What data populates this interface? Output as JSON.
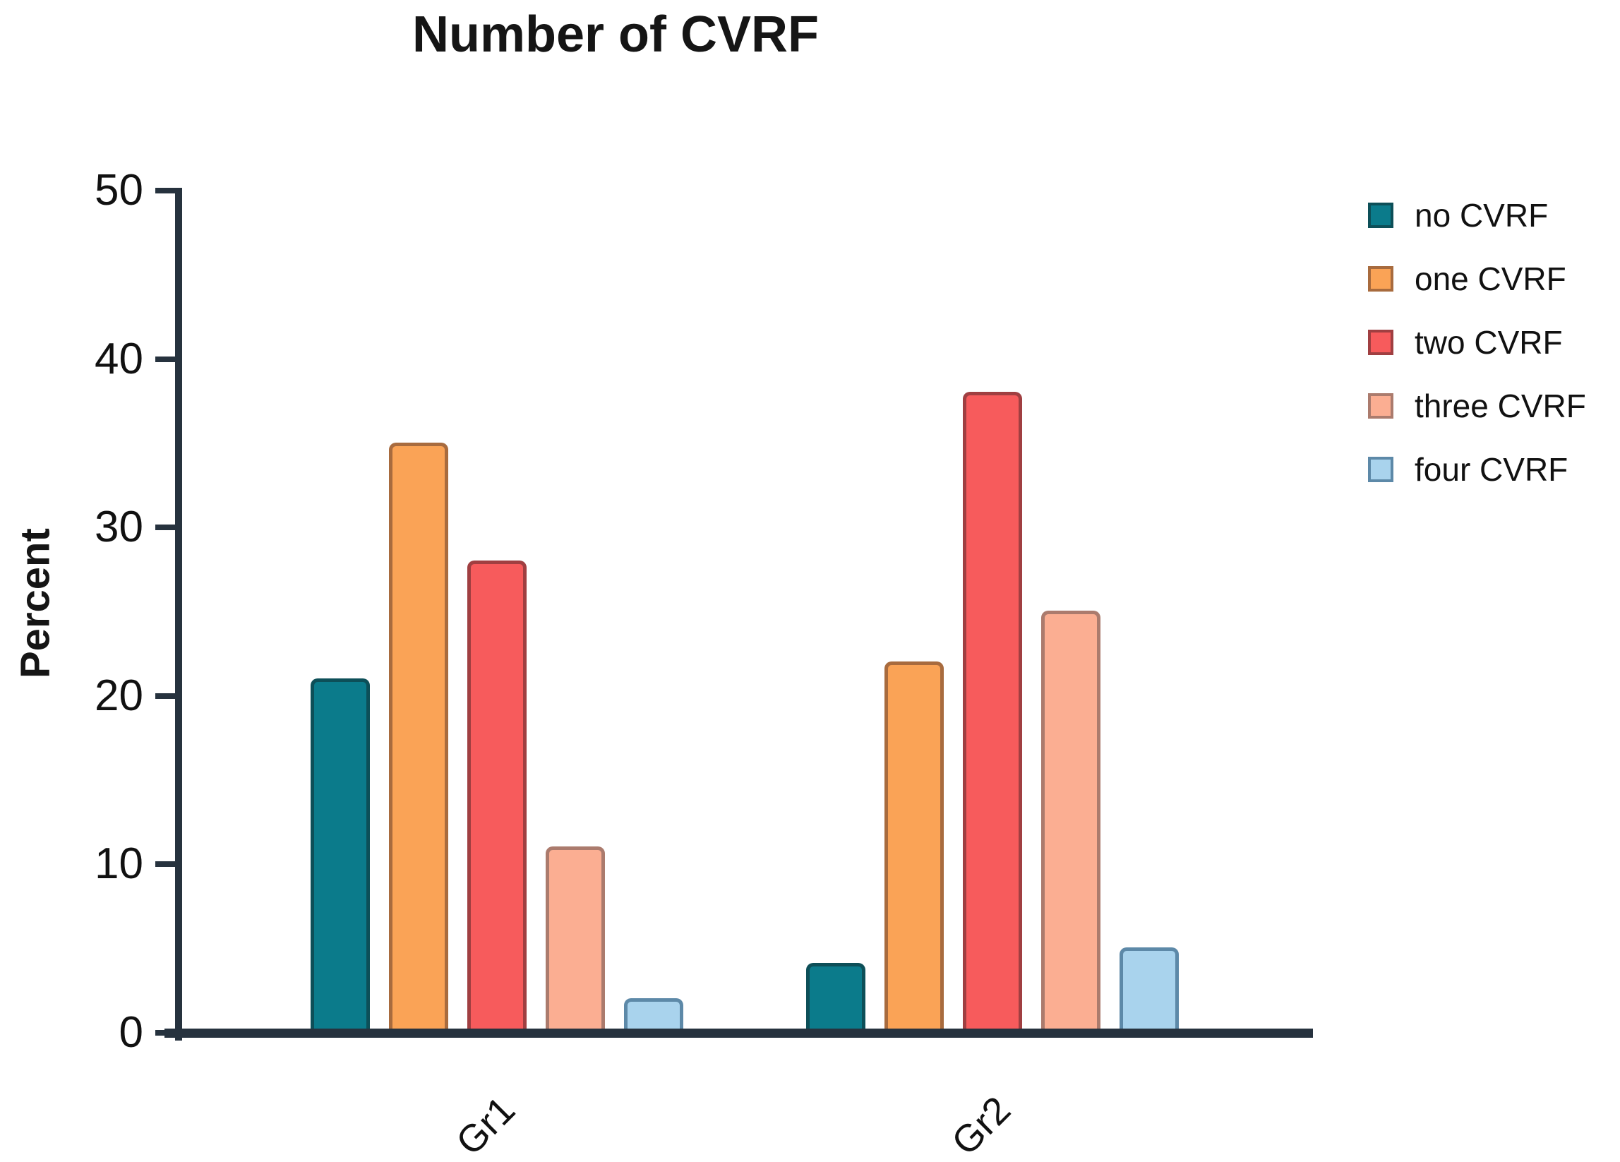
{
  "chart_data": {
    "type": "bar",
    "title": "Number of CVRF",
    "ylabel": "Percent",
    "xlabel": "",
    "categories": [
      "Gr1",
      "Gr2"
    ],
    "series": [
      {
        "name": "no CVRF",
        "values": [
          20.8,
          3.9
        ],
        "fill": "#0b7b8b",
        "border": "#0d4f58"
      },
      {
        "name": "one CVRF",
        "values": [
          34.8,
          21.8
        ],
        "fill": "#faa356",
        "border": "#a86b3e"
      },
      {
        "name": "two CVRF",
        "values": [
          27.8,
          37.8
        ],
        "fill": "#f75b5c",
        "border": "#a03f41"
      },
      {
        "name": "three CVRF",
        "values": [
          10.8,
          24.8
        ],
        "fill": "#fbae92",
        "border": "#ab7b6d"
      },
      {
        "name": "four CVRF",
        "values": [
          1.8,
          4.8
        ],
        "fill": "#a9d3ed",
        "border": "#5d89a8"
      }
    ],
    "y_ticks": [
      0,
      10,
      20,
      30,
      40,
      50
    ],
    "ylim": [
      0,
      50
    ],
    "grid": false,
    "legend_position": "right",
    "colors": {
      "axis": "#26323e",
      "text": "#111111",
      "background": "#ffffff"
    }
  }
}
